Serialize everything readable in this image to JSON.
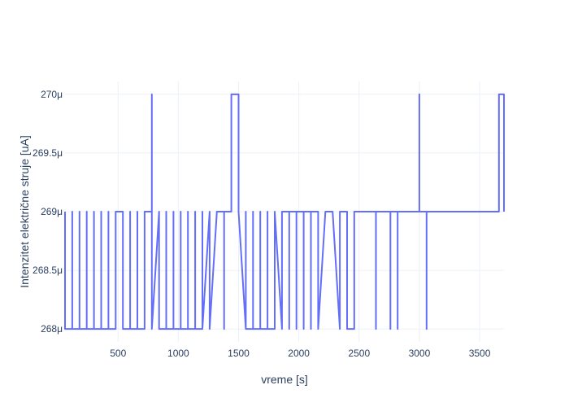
{
  "chart_data": {
    "type": "line",
    "title": "",
    "xlabel": "vreme [s]",
    "ylabel": "Intenzitet električne struje [uA]",
    "xlim": [
      60,
      3702
    ],
    "ylim": [
      0.00026789,
      0.00027011
    ],
    "x_ticks": [
      500,
      1000,
      1500,
      2000,
      2500,
      3000,
      3500
    ],
    "x_tick_labels": [
      "500",
      "1000",
      "1500",
      "2000",
      "2500",
      "3000",
      "3500"
    ],
    "y_ticks": [
      0.000268,
      0.0002685,
      0.000269,
      0.0002695,
      0.00027
    ],
    "y_tick_labels": [
      "268μ",
      "268.5μ",
      "269μ",
      "269.5μ",
      "270μ"
    ],
    "grid": true,
    "legend": "none",
    "colors": {
      "line": "#636efa",
      "grid": "#ebf0f8",
      "text": "#2a3f5f",
      "background": "#ffffff"
    },
    "series": [
      {
        "x": [
          60,
          60,
          120,
          120,
          120,
          180,
          180,
          180,
          240,
          240,
          240,
          300,
          300,
          300,
          360,
          360,
          360,
          420,
          420,
          420,
          480,
          480,
          540,
          540,
          600,
          600,
          600,
          660,
          660,
          660,
          720,
          720,
          780,
          780,
          780,
          840,
          840,
          900,
          900,
          900,
          960,
          960,
          960,
          1020,
          1020,
          1020,
          1080,
          1080,
          1080,
          1140,
          1140,
          1140,
          1200,
          1200,
          1200,
          1260,
          1260,
          1320,
          1380,
          1380,
          1380,
          1440,
          1440,
          1500,
          1500,
          1560,
          1560,
          1560,
          1620,
          1620,
          1620,
          1680,
          1680,
          1680,
          1740,
          1740,
          1740,
          1800,
          1800,
          1860,
          1860,
          1920,
          1920,
          1920,
          1980,
          1980,
          1980,
          2040,
          2040,
          2040,
          2100,
          2100,
          2100,
          2160,
          2160,
          2220,
          2280,
          2340,
          2340,
          2400,
          2400,
          2460,
          2460,
          2640,
          2640,
          2640,
          2760,
          2760,
          2760,
          2820,
          2820,
          2820,
          3000,
          3000,
          3000,
          3060,
          3060,
          3060,
          3660,
          3660,
          3702,
          3702
        ],
        "y": [
          0.000269,
          0.000268,
          0.000268,
          0.000269,
          0.000268,
          0.000268,
          0.000269,
          0.000268,
          0.000268,
          0.000269,
          0.000268,
          0.000268,
          0.000269,
          0.000268,
          0.000268,
          0.000269,
          0.000268,
          0.000268,
          0.000269,
          0.000268,
          0.000268,
          0.000269,
          0.000269,
          0.000268,
          0.000268,
          0.000269,
          0.000268,
          0.000268,
          0.000269,
          0.000268,
          0.000268,
          0.000269,
          0.000269,
          0.00027,
          0.000268,
          0.000269,
          0.000268,
          0.000268,
          0.000269,
          0.000268,
          0.000268,
          0.000269,
          0.000268,
          0.000268,
          0.000269,
          0.000268,
          0.000268,
          0.000269,
          0.000268,
          0.000268,
          0.000269,
          0.000268,
          0.000268,
          0.000269,
          0.000268,
          0.000269,
          0.000268,
          0.000269,
          0.000269,
          0.000268,
          0.000269,
          0.000269,
          0.00027,
          0.00027,
          0.000269,
          0.000268,
          0.000269,
          0.000268,
          0.000268,
          0.000269,
          0.000268,
          0.000268,
          0.000269,
          0.000268,
          0.000268,
          0.000269,
          0.000268,
          0.000268,
          0.000269,
          0.000268,
          0.000269,
          0.000269,
          0.000268,
          0.000269,
          0.000269,
          0.000268,
          0.000269,
          0.000269,
          0.000268,
          0.000269,
          0.000269,
          0.000268,
          0.000269,
          0.000269,
          0.000268,
          0.000269,
          0.000269,
          0.000268,
          0.000269,
          0.000269,
          0.000268,
          0.000268,
          0.000269,
          0.000269,
          0.000268,
          0.000269,
          0.000269,
          0.000268,
          0.000269,
          0.000269,
          0.000268,
          0.000269,
          0.000269,
          0.00027,
          0.000269,
          0.000269,
          0.000268,
          0.000269,
          0.000269,
          0.00027,
          0.00027,
          0.000269
        ]
      }
    ]
  }
}
